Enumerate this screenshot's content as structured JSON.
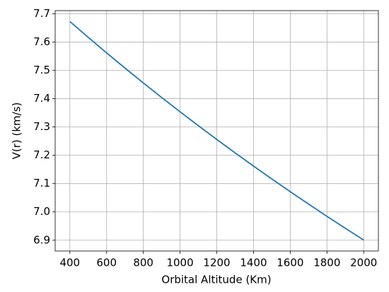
{
  "chart_data": {
    "type": "line",
    "x_label": "Orbital Altitude (Km)",
    "y_label": "V(r) (km/s)",
    "x": [
      400,
      500,
      600,
      700,
      800,
      900,
      1000,
      1100,
      1200,
      1300,
      1400,
      1500,
      1600,
      1700,
      1800,
      1900,
      2000
    ],
    "series": [
      {
        "color": "#1f77b4",
        "values": [
          7.6726,
          7.6166,
          7.5617,
          7.5081,
          7.4555,
          7.4041,
          7.3537,
          7.3043,
          7.2559,
          7.2085,
          7.1619,
          7.1163,
          7.0715,
          7.0276,
          6.9845,
          6.9421,
          6.9005
        ]
      }
    ],
    "xlim": [
      320,
      2080
    ],
    "ylim": [
      6.862,
      7.711
    ],
    "xticks": [
      400,
      600,
      800,
      1000,
      1200,
      1400,
      1600,
      1800,
      2000
    ],
    "yticks": [
      6.9,
      {
        "value": 7,
        "label": "7.0"
      },
      7.1,
      7.2,
      7.3,
      7.4,
      7.5,
      7.6,
      7.7
    ],
    "grid": true
  }
}
